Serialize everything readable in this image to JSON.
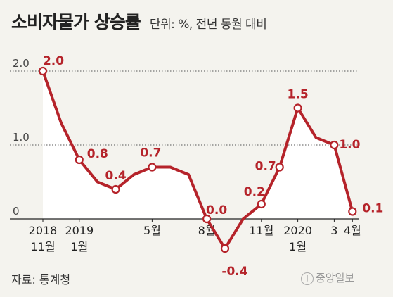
{
  "header": {
    "title": "소비자물가 상승률",
    "unit": "단위: %, 전년 동월 대비"
  },
  "footer": {
    "source": "자료: 통계청",
    "logo": "중앙일보",
    "logo_mark": "J"
  },
  "colors": {
    "line": "#b5232a",
    "area": "#ffffff",
    "text": "#222222",
    "background": "#f4f3ee"
  },
  "chart_data": {
    "type": "line",
    "title": "소비자물가 상승률",
    "unit": "단위: %, 전년 동월 대비",
    "ylim": [
      -0.5,
      2.0
    ],
    "yticks": [
      "2.0",
      "1.0",
      "0"
    ],
    "grid": "dotted at 1.0 and 2.0",
    "series": [
      {
        "values": [
          2.0,
          1.3,
          0.8,
          0.5,
          0.4,
          0.6,
          0.7,
          0.7,
          0.6,
          0.0,
          -0.4,
          0.0,
          0.2,
          0.7,
          1.5,
          1.1,
          1.0,
          0.1
        ],
        "markers": [
          {
            "i": 0,
            "label": "2.0",
            "grey": true
          },
          {
            "i": 2,
            "label": "0.8"
          },
          {
            "i": 4,
            "label": "0.4"
          },
          {
            "i": 6,
            "label": "0.7"
          },
          {
            "i": 9,
            "label": "0.0"
          },
          {
            "i": 10,
            "label": "-0.4"
          },
          {
            "i": 12,
            "label": "0.2"
          },
          {
            "i": 13,
            "label": "0.7"
          },
          {
            "i": 14,
            "label": "1.5"
          },
          {
            "i": 16,
            "label": "1.0"
          },
          {
            "i": 17,
            "label": "0.1",
            "big": true
          }
        ]
      }
    ],
    "x_tick_labels": [
      {
        "i": 0,
        "lines": [
          "2018",
          "11월"
        ]
      },
      {
        "i": 2,
        "lines": [
          "2019",
          "1월"
        ]
      },
      {
        "i": 6,
        "lines": [
          "5월"
        ]
      },
      {
        "i": 9,
        "lines": [
          "8월"
        ]
      },
      {
        "i": 12,
        "lines": [
          "11월"
        ]
      },
      {
        "i": 14,
        "lines": [
          "2020",
          "1월"
        ]
      },
      {
        "i": 16,
        "lines": [
          "3"
        ]
      },
      {
        "i": 17,
        "lines": [
          "4월"
        ]
      }
    ]
  }
}
